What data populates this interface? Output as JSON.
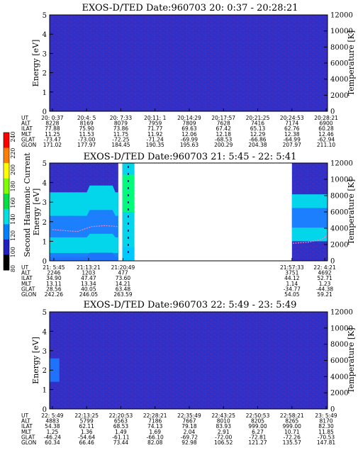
{
  "colors": {
    "background": "#3030c8",
    "speckle": "#7a2aa0",
    "cyan_band": "#00e5ee",
    "blue_band": "#1e78ff",
    "green_band": "#00ff70",
    "trace": "#ff80c0"
  },
  "colorbar": {
    "label": "Second Harmonic Current",
    "ticks": [
      "240",
      "220",
      "200",
      "180",
      "160",
      "140",
      "120",
      "100",
      "80"
    ],
    "colors": [
      "#ff0000",
      "#ff8000",
      "#ffff00",
      "#80ff00",
      "#00e040",
      "#00e0e0",
      "#0080ff",
      "#2020c0",
      "#000000"
    ]
  },
  "chart_data": [
    {
      "type": "heatmap",
      "title": "EXOS-D/TED   Date:960703  20: 0:37 - 20:28:21",
      "ylabel": "Energy [eV]",
      "y2label": "Temperature [K]",
      "ylim": [
        0,
        5
      ],
      "y_ticks": [
        "0",
        "1",
        "2",
        "3",
        "4",
        "5"
      ],
      "y2lim": [
        0,
        12000
      ],
      "y2_ticks": [
        "0",
        "2000",
        "4000",
        "6000",
        "8000",
        "10000",
        "12000"
      ],
      "data_spans": [
        [
          0,
          1
        ]
      ],
      "segments": [],
      "trace": [],
      "table": {
        "labels": [
          "UT",
          "ALT",
          "ILAT",
          "MLT",
          "GLAT",
          "GLON"
        ],
        "columns": [
          [
            "20: 0:37",
            "8228",
            "77.88",
            "11.25",
            "-73.47",
            "171.02"
          ],
          [
            "20:4: 5",
            "8169",
            "75.90",
            "11.53",
            "-73.00",
            "177.97"
          ],
          [
            "20: 7:33",
            "8079",
            "73.86",
            "11.75",
            "-72.25",
            "184.45"
          ],
          [
            "20:11: 1",
            "7959",
            "71.77",
            "11.92",
            "-71.24",
            "190.35"
          ],
          [
            "20:14:29",
            "7809",
            "69.63",
            "12.06",
            "-69.99",
            "195.63"
          ],
          [
            "20:17:57",
            "7628",
            "67.42",
            "12.18",
            "-68.53",
            "200.29"
          ],
          [
            "20:21:25",
            "7416",
            "65.13",
            "12.29",
            "-66.86",
            "204.38"
          ],
          [
            "20:24:53",
            "7174",
            "62.76",
            "12.38",
            "-64.99",
            "207.97"
          ],
          [
            "20:28:21",
            "6900",
            "60.28",
            "12.46",
            "-62.94",
            "211.10"
          ]
        ]
      }
    },
    {
      "type": "heatmap",
      "title": "EXOS-D/TED   Date:960703  21: 5:45 - 22: 5:41",
      "ylabel": "Energy [eV]",
      "y2label": "Temperature [K]",
      "ylim": [
        0,
        5
      ],
      "y_ticks": [
        "0",
        "1",
        "2",
        "3",
        "4",
        "5"
      ],
      "y2lim": [
        0,
        12000
      ],
      "y2_ticks": [
        "0",
        "2000",
        "4000",
        "6000",
        "8000",
        "10000",
        "12000"
      ],
      "data_spans": [
        [
          0,
          0.247
        ],
        [
          0.262,
          0.305
        ],
        [
          0.872,
          1
        ]
      ],
      "segments": [
        {
          "from": 0,
          "to": 0.247,
          "bands": [
            {
              "lo": 0.2,
              "hi": 3.5,
              "color": "#00e5ee",
              "bump": 0.35
            },
            {
              "lo": 1.2,
              "hi": 2.3,
              "color": "#1e78ff",
              "bump": 0.3
            },
            {
              "lo": 0.0,
              "hi": 0.4,
              "color": "#1e78ff",
              "bump": 0
            }
          ]
        },
        {
          "from": 0.262,
          "to": 0.305,
          "bands": [
            {
              "lo": 0.0,
              "hi": 5.0,
              "color": "#00e5ee",
              "bump": 0
            },
            {
              "lo": 0.0,
              "hi": 0.7,
              "color": "#00c8ff",
              "bump": 0
            },
            {
              "lo": 2.5,
              "hi": 4.4,
              "color": "#00ff70",
              "bump": 0
            }
          ]
        },
        {
          "from": 0.872,
          "to": 1,
          "bands": [
            {
              "lo": 1.0,
              "hi": 3.4,
              "color": "#00e5ee",
              "bump": 0
            },
            {
              "lo": 1.7,
              "hi": 2.7,
              "color": "#1e78ff",
              "bump": 0
            }
          ]
        }
      ],
      "trace": [
        {
          "x": [
            0.01,
            0.05,
            0.1,
            0.15,
            0.2,
            0.247
          ],
          "y": [
            1.6,
            1.55,
            1.5,
            1.75,
            1.8,
            1.75
          ]
        },
        {
          "x": [
            0.875,
            0.93,
            0.98,
            1.0
          ],
          "y": [
            0.9,
            0.95,
            1.1,
            1.3
          ]
        }
      ],
      "table": {
        "labels": [
          "UT",
          "ALT",
          "ILAT",
          "MLT",
          "GLAT",
          "GLON"
        ],
        "columns": [
          [
            "21: 5:45",
            "2246",
            "34.90",
            "13.11",
            "28.56",
            "242.26"
          ],
          [
            "21:13:21",
            "1203",
            "47.47",
            "13.34",
            "40.05",
            "246.05"
          ],
          [
            "21:20:49",
            "477",
            "73.60",
            "14.21",
            "63.48",
            "263.59"
          ],
          [
            "21:57:33",
            "3751",
            "44.12",
            "1.14",
            "-34.77",
            "54.05"
          ],
          [
            "22: 4:21",
            "4692",
            "52.71",
            "1.23",
            "-44.38",
            "59.21"
          ]
        ],
        "positions": [
          0.015,
          0.14,
          0.264,
          0.872,
          0.99
        ]
      }
    },
    {
      "type": "heatmap",
      "title": "EXOS-D/TED   Date:960703  22: 5:49 - 23: 5:49",
      "ylabel": "Energy [eV]",
      "y2label": "Temperature [K]",
      "ylim": [
        0,
        5
      ],
      "y_ticks": [
        "0",
        "1",
        "2",
        "3",
        "4",
        "5"
      ],
      "y2lim": [
        0,
        12000
      ],
      "y2_ticks": [
        "0",
        "2000",
        "4000",
        "6000",
        "8000",
        "10000",
        "12000"
      ],
      "data_spans": [
        [
          0,
          1
        ]
      ],
      "segments": [
        {
          "from": 0,
          "to": 0.035,
          "bands": [
            {
              "lo": 1.4,
              "hi": 2.6,
              "color": "#1e78ff",
              "bump": 0
            }
          ]
        }
      ],
      "trace": [],
      "table": {
        "labels": [
          "UT",
          "ALT",
          "ILAT",
          "MLT",
          "GLAT",
          "GLON"
        ],
        "columns": [
          [
            "22: 5:49",
            "4883",
            "54.38",
            "1.25",
            "-46.24",
            "60.34"
          ],
          [
            "22:13:25",
            "5799",
            "62.11",
            "1.36",
            "-54.64",
            "66.46"
          ],
          [
            "22:20:53",
            "6563",
            "68.53",
            "1.49",
            "-61.11",
            "73.44"
          ],
          [
            "22:28:21",
            "7186",
            "74.13",
            "1.69",
            "-66.10",
            "82.08"
          ],
          [
            "22:35:49",
            "7667",
            "79.18",
            "2.04",
            "-69.72",
            "92.98"
          ],
          [
            "22:43:25",
            "8010",
            "83.93",
            "2.91",
            "-72.00",
            "106.52"
          ],
          [
            "22:50:53",
            "8205",
            "999.00",
            "6.27",
            "-72.81",
            "121.27"
          ],
          [
            "22:58:21",
            "8265",
            "999.00",
            "10.71",
            "-72.26",
            "135.57"
          ],
          [
            "23: 5:49",
            "8170",
            "82.30",
            "11.85",
            "-70.53",
            "147.81"
          ]
        ]
      }
    }
  ]
}
